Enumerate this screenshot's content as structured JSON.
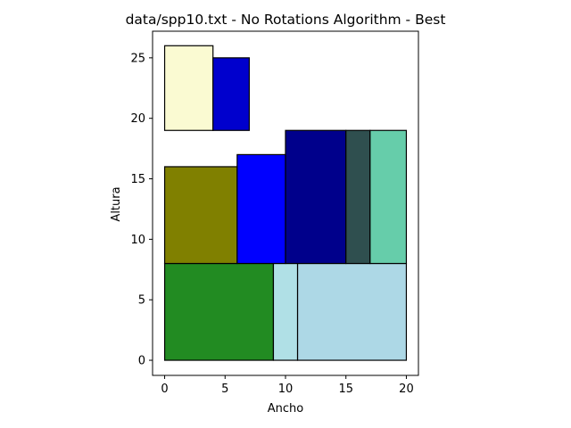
{
  "chart_data": {
    "type": "rectangles",
    "title": "data/spp10.txt - No Rotations Algorithm - Best",
    "xlabel": "Ancho",
    "ylabel": "Altura",
    "xlim": [
      -1,
      21
    ],
    "ylim": [
      -1.25,
      27.2
    ],
    "xticks": [
      0,
      5,
      10,
      15,
      20
    ],
    "yticks": [
      0,
      5,
      10,
      15,
      20,
      25
    ],
    "grid": false,
    "rectangles": [
      {
        "x": 0,
        "y": 0,
        "w": 9,
        "h": 8,
        "color": "#228b22"
      },
      {
        "x": 9,
        "y": 0,
        "w": 2,
        "h": 8,
        "color": "#b0e0e6"
      },
      {
        "x": 11,
        "y": 0,
        "w": 9,
        "h": 8,
        "color": "#add8e6"
      },
      {
        "x": 0,
        "y": 8,
        "w": 6,
        "h": 8,
        "color": "#808000"
      },
      {
        "x": 6,
        "y": 8,
        "w": 4,
        "h": 9,
        "color": "#0000ff"
      },
      {
        "x": 10,
        "y": 8,
        "w": 5,
        "h": 11,
        "color": "#00008b"
      },
      {
        "x": 15,
        "y": 8,
        "w": 2,
        "h": 11,
        "color": "#2f4f4f"
      },
      {
        "x": 17,
        "y": 8,
        "w": 3,
        "h": 11,
        "color": "#66cdaa"
      },
      {
        "x": 0,
        "y": 19,
        "w": 4,
        "h": 7,
        "color": "#fafad2"
      },
      {
        "x": 4,
        "y": 19,
        "w": 3,
        "h": 6,
        "color": "#0000cd"
      }
    ]
  }
}
